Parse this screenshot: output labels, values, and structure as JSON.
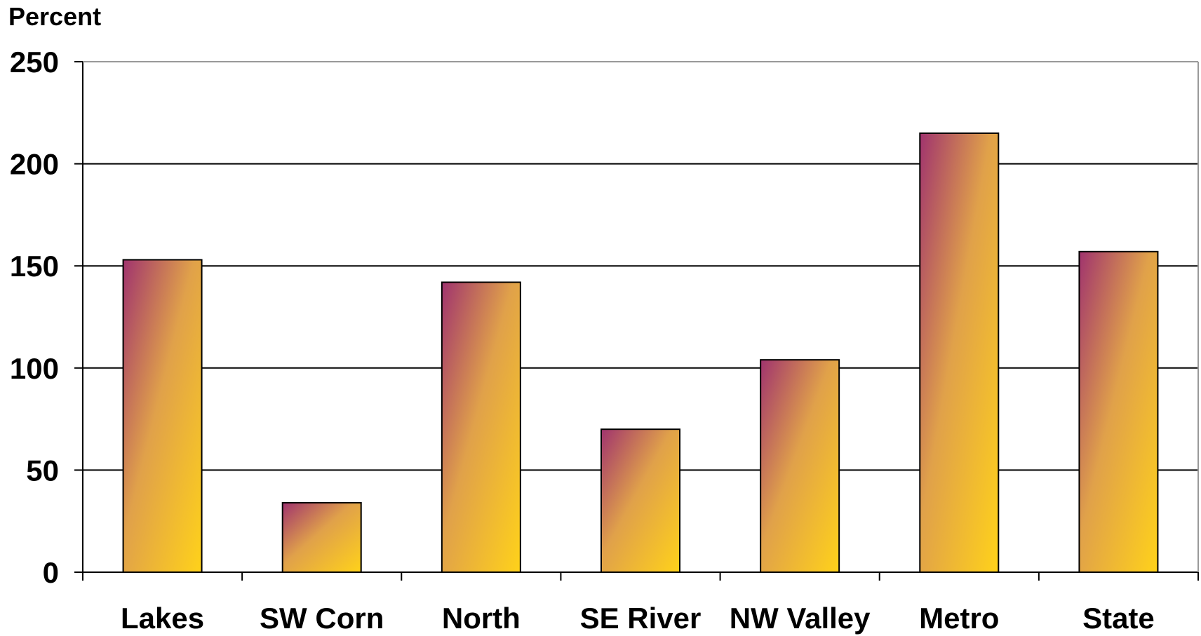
{
  "chart_data": {
    "type": "bar",
    "title": "",
    "xlabel": "",
    "ylabel": "Percent",
    "categories": [
      "Lakes",
      "SW Corn",
      "North",
      "SE River",
      "NW Valley",
      "Metro",
      "State"
    ],
    "values": [
      153,
      34,
      142,
      70,
      104,
      215,
      157
    ],
    "ylim": [
      0,
      250
    ],
    "yticks": [
      "0",
      "50",
      "100",
      "150",
      "200",
      "250"
    ],
    "ytick_values": [
      0,
      50,
      100,
      150,
      200,
      250
    ],
    "grid": true,
    "legend": "none",
    "colors": {
      "bar_top": "#a0336e",
      "bar_bottom": "#ffd21a",
      "bar_outline": "#000000",
      "gridline": "#000000",
      "axis": "#000000"
    }
  }
}
